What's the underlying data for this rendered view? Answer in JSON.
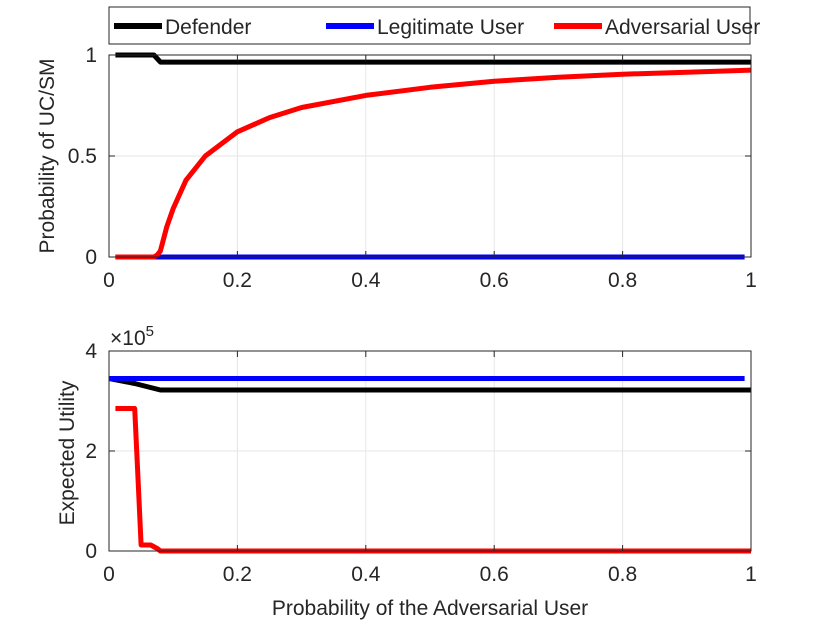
{
  "legend": {
    "placement": "top",
    "entries": [
      {
        "label": "Defender",
        "color": "#000000"
      },
      {
        "label": "Legitimate User",
        "color": "#0000ff"
      },
      {
        "label": "Adversarial User",
        "color": "#ff0000"
      }
    ]
  },
  "chart_data": [
    {
      "type": "line",
      "title": "",
      "xlabel": "",
      "ylabel": "Probability of UC/SM",
      "xlim": [
        0,
        1
      ],
      "ylim": [
        0,
        1
      ],
      "xticks": [
        0,
        0.2,
        0.4,
        0.6,
        0.8,
        1
      ],
      "xtick_labels": [
        "0",
        "0.2",
        "0.4",
        "0.6",
        "0.8",
        "1"
      ],
      "yticks": [
        0,
        0.5,
        1
      ],
      "ytick_labels": [
        "0",
        "0.5",
        "1"
      ],
      "grid": true,
      "series": [
        {
          "name": "Defender",
          "color": "#000000",
          "x": [
            0.01,
            0.07,
            0.08,
            0.2,
            0.4,
            0.6,
            0.8,
            1.0
          ],
          "y": [
            1.0,
            1.0,
            0.965,
            0.965,
            0.965,
            0.965,
            0.965,
            0.965
          ]
        },
        {
          "name": "Legitimate User",
          "color": "#0000ff",
          "x": [
            0.01,
            0.2,
            0.4,
            0.6,
            0.8,
            0.99
          ],
          "y": [
            0,
            0,
            0,
            0,
            0,
            0
          ]
        },
        {
          "name": "Adversarial User",
          "color": "#ff0000",
          "x": [
            0.01,
            0.07,
            0.075,
            0.08,
            0.09,
            0.1,
            0.12,
            0.15,
            0.2,
            0.25,
            0.3,
            0.4,
            0.5,
            0.6,
            0.7,
            0.8,
            0.9,
            1.0
          ],
          "y": [
            0,
            0,
            0.01,
            0.03,
            0.15,
            0.24,
            0.38,
            0.5,
            0.62,
            0.69,
            0.74,
            0.8,
            0.84,
            0.87,
            0.89,
            0.905,
            0.915,
            0.925
          ]
        }
      ]
    },
    {
      "type": "line",
      "title": "",
      "xlabel": "Probability of the Adversarial User",
      "ylabel": "Expected Utility",
      "y_exponent_base": "×10",
      "y_exponent_power": "5",
      "xlim": [
        0,
        1
      ],
      "ylim": [
        0,
        4
      ],
      "xticks": [
        0,
        0.2,
        0.4,
        0.6,
        0.8,
        1
      ],
      "xtick_labels": [
        "0",
        "0.2",
        "0.4",
        "0.6",
        "0.8",
        "1"
      ],
      "yticks": [
        0,
        2,
        4
      ],
      "ytick_labels": [
        "0",
        "2",
        "4"
      ],
      "grid": true,
      "series": [
        {
          "name": "Defender",
          "color": "#000000",
          "x": [
            0,
            0.04,
            0.08,
            0.2,
            0.4,
            0.6,
            0.8,
            1.0
          ],
          "y": [
            3.45,
            3.35,
            3.22,
            3.22,
            3.22,
            3.22,
            3.22,
            3.22
          ]
        },
        {
          "name": "Legitimate User",
          "color": "#0000ff",
          "x": [
            0,
            0.2,
            0.4,
            0.6,
            0.8,
            0.99
          ],
          "y": [
            3.45,
            3.45,
            3.45,
            3.45,
            3.45,
            3.45
          ]
        },
        {
          "name": "Adversarial User",
          "color": "#ff0000",
          "x": [
            0.01,
            0.04,
            0.045,
            0.05,
            0.065,
            0.075,
            0.08,
            0.2,
            0.4,
            0.6,
            0.8,
            1.0
          ],
          "y": [
            2.85,
            2.85,
            1.5,
            0.12,
            0.12,
            0.05,
            0,
            0,
            0,
            0,
            0,
            0
          ]
        }
      ]
    }
  ]
}
